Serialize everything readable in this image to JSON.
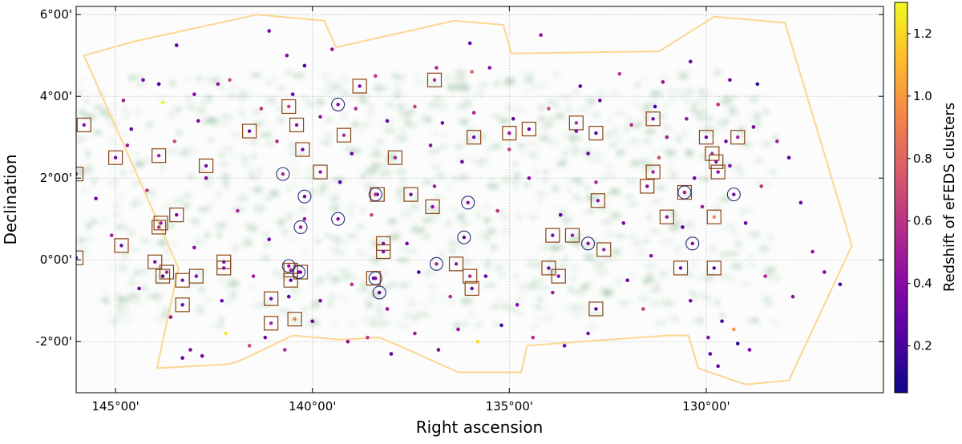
{
  "chart_data": {
    "type": "scatter",
    "title": "",
    "xlabel": "Right ascension",
    "ylabel": "Declination",
    "colorbar_label": "Redshift of eFEDS clusters",
    "x_inverted": true,
    "xlim": [
      146.0,
      125.5
    ],
    "ylim": [
      -3.25,
      6.2
    ],
    "x_ticks": [
      {
        "value": 145,
        "label": "145°00'"
      },
      {
        "value": 140,
        "label": "140°00'"
      },
      {
        "value": 135,
        "label": "135°00'"
      },
      {
        "value": 130,
        "label": "130°00'"
      }
    ],
    "y_ticks": [
      {
        "value": 6,
        "label": "6°00'"
      },
      {
        "value": 4,
        "label": "4°00'"
      },
      {
        "value": 2,
        "label": "2°00'"
      },
      {
        "value": 0,
        "label": "0°00'"
      },
      {
        "value": -2,
        "label": "-2°00'"
      }
    ],
    "colorbar_ticks": [
      {
        "value": 0.2,
        "label": "0.2"
      },
      {
        "value": 0.4,
        "label": "0.4"
      },
      {
        "value": 0.6,
        "label": "0.6"
      },
      {
        "value": 0.8,
        "label": "0.8"
      },
      {
        "value": 1.0,
        "label": "1.0"
      },
      {
        "value": 1.2,
        "label": "1.2"
      }
    ],
    "colorbar_range": [
      0.05,
      1.3
    ],
    "colormap": [
      "#0d0887",
      "#5302a3",
      "#8b0aa5",
      "#b83289",
      "#db5c68",
      "#f48849",
      "#febd2a",
      "#f0f921"
    ],
    "grid": true,
    "footprint_color": "#fdd690",
    "square_marker_color": "#8b4513",
    "circle_marker_color": "#2a2a7a",
    "footprint": [
      [
        145.8,
        5.0
      ],
      [
        144.5,
        5.35
      ],
      [
        141.4,
        6.0
      ],
      [
        139.7,
        5.85
      ],
      [
        139.4,
        5.2
      ],
      [
        136.4,
        5.85
      ],
      [
        135.15,
        5.75
      ],
      [
        134.95,
        5.05
      ],
      [
        131.2,
        5.1
      ],
      [
        129.8,
        5.95
      ],
      [
        128.0,
        5.8
      ],
      [
        126.3,
        0.35
      ],
      [
        127.9,
        -2.95
      ],
      [
        129.0,
        -3.05
      ],
      [
        130.2,
        -2.65
      ],
      [
        130.45,
        -1.85
      ],
      [
        131.0,
        -1.85
      ],
      [
        134.55,
        -2.1
      ],
      [
        134.7,
        -2.75
      ],
      [
        136.3,
        -2.75
      ],
      [
        137.8,
        -2.1
      ],
      [
        138.3,
        -1.9
      ],
      [
        139.3,
        -1.95
      ],
      [
        140.5,
        -1.85
      ],
      [
        141.8,
        -2.45
      ],
      [
        142.1,
        -2.55
      ],
      [
        143.95,
        -2.65
      ],
      [
        143.4,
        -0.2
      ],
      [
        145.8,
        5.0
      ]
    ],
    "clusters": [
      {
        "ra": 141.1,
        "dec": 5.6,
        "z": 0.35
      },
      {
        "ra": 140.65,
        "dec": 5.0,
        "z": 0.4
      },
      {
        "ra": 140.2,
        "dec": 4.75,
        "z": 0.2
      },
      {
        "ra": 139.5,
        "dec": 5.15,
        "z": 0.45
      },
      {
        "ra": 136.85,
        "dec": 4.7,
        "z": 0.55
      },
      {
        "ra": 135.95,
        "dec": 4.6,
        "z": 0.8
      },
      {
        "ra": 135.5,
        "dec": 4.7,
        "z": 0.4
      },
      {
        "ra": 133.2,
        "dec": 4.25,
        "z": 0.25
      },
      {
        "ra": 132.2,
        "dec": 4.55,
        "z": 0.6
      },
      {
        "ra": 131.1,
        "dec": 4.35,
        "z": 0.45
      },
      {
        "ra": 130.4,
        "dec": 4.85,
        "z": 0.3
      },
      {
        "ra": 129.4,
        "dec": 4.4,
        "z": 0.35
      },
      {
        "ra": 128.7,
        "dec": 4.3,
        "z": 0.15
      },
      {
        "ra": 143.45,
        "dec": 5.25,
        "z": 0.25
      },
      {
        "ra": 144.3,
        "dec": 4.4,
        "z": 0.35
      },
      {
        "ra": 144.8,
        "dec": 3.9,
        "z": 0.5
      },
      {
        "ra": 144.6,
        "dec": 3.2,
        "z": 0.3
      },
      {
        "ra": 143.8,
        "dec": 3.85,
        "z": 1.3
      },
      {
        "ra": 143.0,
        "dec": 4.05,
        "z": 0.4
      },
      {
        "ra": 142.1,
        "dec": 4.4,
        "z": 0.7
      },
      {
        "ra": 141.3,
        "dec": 3.7,
        "z": 0.6
      },
      {
        "ra": 140.5,
        "dec": 4.05,
        "z": 0.25
      },
      {
        "ra": 139.8,
        "dec": 3.5,
        "z": 0.45
      },
      {
        "ra": 138.9,
        "dec": 3.7,
        "z": 0.55
      },
      {
        "ra": 138.1,
        "dec": 3.4,
        "z": 0.3
      },
      {
        "ra": 137.4,
        "dec": 3.75,
        "z": 0.65
      },
      {
        "ra": 136.7,
        "dec": 3.35,
        "z": 0.35
      },
      {
        "ra": 135.9,
        "dec": 3.6,
        "z": 0.5
      },
      {
        "ra": 134.9,
        "dec": 3.45,
        "z": 0.25
      },
      {
        "ra": 134.0,
        "dec": 3.7,
        "z": 0.7
      },
      {
        "ra": 133.3,
        "dec": 3.15,
        "z": 0.4
      },
      {
        "ra": 132.7,
        "dec": 3.9,
        "z": 0.3
      },
      {
        "ra": 131.9,
        "dec": 3.3,
        "z": 0.55
      },
      {
        "ra": 131.3,
        "dec": 3.75,
        "z": 0.2
      },
      {
        "ra": 130.5,
        "dec": 3.45,
        "z": 0.45
      },
      {
        "ra": 129.7,
        "dec": 3.8,
        "z": 0.6
      },
      {
        "ra": 128.8,
        "dec": 3.25,
        "z": 0.35
      },
      {
        "ra": 128.2,
        "dec": 2.9,
        "z": 0.5
      },
      {
        "ra": 127.9,
        "dec": 2.5,
        "z": 0.25
      },
      {
        "ra": 127.6,
        "dec": 1.4,
        "z": 0.3
      },
      {
        "ra": 127.3,
        "dec": 0.2,
        "z": 0.45
      },
      {
        "ra": 127.0,
        "dec": -0.3,
        "z": 0.35
      },
      {
        "ra": 126.6,
        "dec": -0.6,
        "z": 0.2
      },
      {
        "ra": 127.8,
        "dec": -0.9,
        "z": 0.4
      },
      {
        "ra": 128.5,
        "dec": -0.4,
        "z": 0.55
      },
      {
        "ra": 129.0,
        "dec": 0.9,
        "z": 0.3
      },
      {
        "ra": 128.6,
        "dec": 1.8,
        "z": 0.6
      },
      {
        "ra": 129.4,
        "dec": 2.3,
        "z": 0.4
      },
      {
        "ra": 130.1,
        "dec": 1.3,
        "z": 0.5
      },
      {
        "ra": 130.6,
        "dec": 0.8,
        "z": 0.25
      },
      {
        "ra": 131.4,
        "dec": 0.1,
        "z": 0.4
      },
      {
        "ra": 132.0,
        "dec": -0.5,
        "z": 0.3
      },
      {
        "ra": 131.6,
        "dec": -1.2,
        "z": 0.65
      },
      {
        "ra": 130.4,
        "dec": -1.0,
        "z": 0.35
      },
      {
        "ra": 129.6,
        "dec": -1.5,
        "z": 0.2
      },
      {
        "ra": 129.9,
        "dec": -2.3,
        "z": 0.25
      },
      {
        "ra": 129.7,
        "dec": -2.6,
        "z": 0.3
      },
      {
        "ra": 129.2,
        "dec": -2.05,
        "z": 0.15
      },
      {
        "ra": 129.3,
        "dec": -1.7,
        "z": 1.0
      },
      {
        "ra": 129.95,
        "dec": -1.9,
        "z": 0.4
      },
      {
        "ra": 128.9,
        "dec": -2.2,
        "z": 0.35
      },
      {
        "ra": 133.0,
        "dec": -1.8,
        "z": 0.4
      },
      {
        "ra": 133.6,
        "dec": -2.1,
        "z": 0.3
      },
      {
        "ra": 134.4,
        "dec": -1.9,
        "z": 0.55
      },
      {
        "ra": 135.2,
        "dec": -1.6,
        "z": 0.2
      },
      {
        "ra": 135.8,
        "dec": -2.0,
        "z": 1.2
      },
      {
        "ra": 136.3,
        "dec": -1.7,
        "z": 0.45
      },
      {
        "ra": 136.8,
        "dec": -2.2,
        "z": 0.35
      },
      {
        "ra": 137.4,
        "dec": -1.8,
        "z": 0.5
      },
      {
        "ra": 138.0,
        "dec": -2.3,
        "z": 0.25
      },
      {
        "ra": 138.6,
        "dec": -1.9,
        "z": 0.6
      },
      {
        "ra": 139.1,
        "dec": -2.0,
        "z": 0.4
      },
      {
        "ra": 140.0,
        "dec": -1.5,
        "z": 0.3
      },
      {
        "ra": 140.7,
        "dec": -2.2,
        "z": 0.55
      },
      {
        "ra": 141.2,
        "dec": -1.9,
        "z": 0.35
      },
      {
        "ra": 141.6,
        "dec": -2.1,
        "z": 0.7
      },
      {
        "ra": 142.2,
        "dec": -1.8,
        "z": 1.25
      },
      {
        "ra": 143.1,
        "dec": -2.2,
        "z": 0.4
      },
      {
        "ra": 143.3,
        "dec": -2.4,
        "z": 0.25
      },
      {
        "ra": 142.8,
        "dec": -2.35,
        "z": 0.3
      },
      {
        "ra": 143.6,
        "dec": -1.4,
        "z": 0.45
      },
      {
        "ra": 144.4,
        "dec": -0.7,
        "z": 0.35
      },
      {
        "ra": 145.1,
        "dec": 0.6,
        "z": 0.5
      },
      {
        "ra": 145.5,
        "dec": 1.5,
        "z": 0.3
      },
      {
        "ra": 144.2,
        "dec": 1.7,
        "z": 0.6
      },
      {
        "ra": 143.5,
        "dec": 2.9,
        "z": 0.7
      },
      {
        "ra": 142.7,
        "dec": 2.0,
        "z": 0.4
      },
      {
        "ra": 141.9,
        "dec": 1.2,
        "z": 0.55
      },
      {
        "ra": 141.1,
        "dec": 0.5,
        "z": 0.3
      },
      {
        "ra": 140.2,
        "dec": 1.0,
        "z": 0.45
      },
      {
        "ra": 139.3,
        "dec": 1.9,
        "z": 0.25
      },
      {
        "ra": 138.5,
        "dec": 1.1,
        "z": 0.65
      },
      {
        "ra": 137.6,
        "dec": 0.4,
        "z": 0.35
      },
      {
        "ra": 136.9,
        "dec": 1.8,
        "z": 0.5
      },
      {
        "ra": 136.2,
        "dec": 2.4,
        "z": 0.3
      },
      {
        "ra": 135.3,
        "dec": 1.2,
        "z": 0.6
      },
      {
        "ra": 134.5,
        "dec": 2.0,
        "z": 0.4
      },
      {
        "ra": 133.7,
        "dec": 1.1,
        "z": 0.25
      },
      {
        "ra": 132.8,
        "dec": 1.9,
        "z": 0.55
      },
      {
        "ra": 132.1,
        "dec": 0.9,
        "z": 0.35
      },
      {
        "ra": 131.2,
        "dec": 2.5,
        "z": 0.7
      },
      {
        "ra": 130.3,
        "dec": 2.0,
        "z": 0.3
      },
      {
        "ra": 133.9,
        "dec": -0.8,
        "z": 0.5
      },
      {
        "ra": 134.8,
        "dec": -1.1,
        "z": 0.4
      },
      {
        "ra": 135.6,
        "dec": -0.4,
        "z": 0.3
      },
      {
        "ra": 136.5,
        "dec": -0.9,
        "z": 0.55
      },
      {
        "ra": 137.3,
        "dec": -0.3,
        "z": 0.2
      },
      {
        "ra": 138.1,
        "dec": -1.2,
        "z": 0.45
      },
      {
        "ra": 139.0,
        "dec": -0.6,
        "z": 0.6
      },
      {
        "ra": 139.8,
        "dec": -1.0,
        "z": 0.35
      },
      {
        "ra": 140.6,
        "dec": -0.9,
        "z": 0.25
      },
      {
        "ra": 141.5,
        "dec": -0.4,
        "z": 0.5
      },
      {
        "ra": 142.3,
        "dec": -1.0,
        "z": 0.3
      },
      {
        "ra": 143.0,
        "dec": 0.3,
        "z": 0.4
      },
      {
        "ra": 144.7,
        "dec": 2.8,
        "z": 0.45
      },
      {
        "ra": 142.9,
        "dec": 3.4,
        "z": 0.35
      },
      {
        "ra": 140.9,
        "dec": 2.9,
        "z": 0.55
      },
      {
        "ra": 139.0,
        "dec": 2.6,
        "z": 0.3
      },
      {
        "ra": 137.0,
        "dec": 2.8,
        "z": 0.4
      },
      {
        "ra": 135.0,
        "dec": 2.7,
        "z": 0.65
      },
      {
        "ra": 133.0,
        "dec": 2.6,
        "z": 0.3
      },
      {
        "ra": 131.0,
        "dec": 3.0,
        "z": 0.5
      },
      {
        "ra": 129.5,
        "dec": 2.9,
        "z": 0.35
      },
      {
        "ra": 136.0,
        "dec": 5.3,
        "z": 0.3
      },
      {
        "ra": 134.2,
        "dec": 5.5,
        "z": 0.45
      },
      {
        "ra": 138.4,
        "dec": 4.5,
        "z": 0.6
      },
      {
        "ra": 143.9,
        "dec": 4.3,
        "z": 0.2
      },
      {
        "ra": 142.4,
        "dec": 4.3,
        "z": 0.45
      }
    ],
    "square_markers": [
      {
        "ra": 145.8,
        "dec": 3.3,
        "z": 0.4
      },
      {
        "ra": 145.0,
        "dec": 2.5,
        "z": 0.3
      },
      {
        "ra": 143.9,
        "dec": 2.55,
        "z": 0.5
      },
      {
        "ra": 142.7,
        "dec": 2.3,
        "z": 0.35
      },
      {
        "ra": 141.6,
        "dec": 3.15,
        "z": 0.25
      },
      {
        "ra": 140.6,
        "dec": 3.75,
        "z": 0.6
      },
      {
        "ra": 140.4,
        "dec": 3.3,
        "z": 0.4
      },
      {
        "ra": 140.25,
        "dec": 2.7,
        "z": 0.3
      },
      {
        "ra": 139.8,
        "dec": 2.15,
        "z": 0.45
      },
      {
        "ra": 139.2,
        "dec": 3.05,
        "z": 0.55
      },
      {
        "ra": 138.8,
        "dec": 4.25,
        "z": 0.35
      },
      {
        "ra": 138.35,
        "dec": 1.6,
        "z": 0.25
      },
      {
        "ra": 137.9,
        "dec": 2.5,
        "z": 0.5
      },
      {
        "ra": 137.5,
        "dec": 1.6,
        "z": 0.3
      },
      {
        "ra": 136.9,
        "dec": 4.4,
        "z": 0.55
      },
      {
        "ra": 136.95,
        "dec": 1.3,
        "z": 0.4
      },
      {
        "ra": 135.9,
        "dec": 3.0,
        "z": 0.35
      },
      {
        "ra": 135.0,
        "dec": 3.1,
        "z": 0.45
      },
      {
        "ra": 134.5,
        "dec": 3.2,
        "z": 0.3
      },
      {
        "ra": 133.3,
        "dec": 3.35,
        "z": 0.55
      },
      {
        "ra": 132.8,
        "dec": 3.1,
        "z": 0.25
      },
      {
        "ra": 132.75,
        "dec": 1.45,
        "z": 0.4
      },
      {
        "ra": 131.5,
        "dec": 1.8,
        "z": 0.35
      },
      {
        "ra": 131.35,
        "dec": 2.15,
        "z": 0.5
      },
      {
        "ra": 131.35,
        "dec": 3.45,
        "z": 0.3
      },
      {
        "ra": 131.0,
        "dec": 1.05,
        "z": 0.45
      },
      {
        "ra": 130.55,
        "dec": 1.65,
        "z": 0.4
      },
      {
        "ra": 130.0,
        "dec": 3.0,
        "z": 0.3
      },
      {
        "ra": 129.85,
        "dec": 2.6,
        "z": 0.55
      },
      {
        "ra": 129.75,
        "dec": 2.4,
        "z": 0.35
      },
      {
        "ra": 129.7,
        "dec": 2.15,
        "z": 0.4
      },
      {
        "ra": 129.8,
        "dec": 1.05,
        "z": 0.95
      },
      {
        "ra": 129.2,
        "dec": 3.0,
        "z": 0.5
      },
      {
        "ra": 130.65,
        "dec": -0.2,
        "z": 0.3
      },
      {
        "ra": 129.8,
        "dec": -0.2,
        "z": 0.25
      },
      {
        "ra": 133.4,
        "dec": 0.6,
        "z": 0.45
      },
      {
        "ra": 133.9,
        "dec": 0.6,
        "z": 0.35
      },
      {
        "ra": 132.6,
        "dec": 0.25,
        "z": 0.5
      },
      {
        "ra": 134.0,
        "dec": -0.2,
        "z": 0.3
      },
      {
        "ra": 133.75,
        "dec": -0.4,
        "z": 0.4
      },
      {
        "ra": 132.8,
        "dec": -1.2,
        "z": 0.25
      },
      {
        "ra": 136.0,
        "dec": -0.4,
        "z": 0.55
      },
      {
        "ra": 135.95,
        "dec": -0.7,
        "z": 0.3
      },
      {
        "ra": 136.35,
        "dec": -0.1,
        "z": 0.45
      },
      {
        "ra": 138.2,
        "dec": 0.4,
        "z": 0.35
      },
      {
        "ra": 138.2,
        "dec": 0.2,
        "z": 0.4
      },
      {
        "ra": 138.45,
        "dec": -0.45,
        "z": 0.3
      },
      {
        "ra": 140.55,
        "dec": -0.25,
        "z": 0.55
      },
      {
        "ra": 140.3,
        "dec": -0.3,
        "z": 0.4
      },
      {
        "ra": 140.55,
        "dec": -0.5,
        "z": 0.25
      },
      {
        "ra": 141.05,
        "dec": -0.95,
        "z": 0.35
      },
      {
        "ra": 141.05,
        "dec": -1.55,
        "z": 0.5
      },
      {
        "ra": 140.45,
        "dec": -1.45,
        "z": 0.9
      },
      {
        "ra": 142.25,
        "dec": -0.05,
        "z": 0.3
      },
      {
        "ra": 142.25,
        "dec": -0.2,
        "z": 0.4
      },
      {
        "ra": 143.45,
        "dec": 1.1,
        "z": 0.35
      },
      {
        "ra": 143.85,
        "dec": 0.9,
        "z": 0.45
      },
      {
        "ra": 143.9,
        "dec": 0.8,
        "z": 0.55
      },
      {
        "ra": 144.85,
        "dec": 0.35,
        "z": 0.3
      },
      {
        "ra": 144.0,
        "dec": -0.05,
        "z": 0.4
      },
      {
        "ra": 143.8,
        "dec": -0.4,
        "z": 0.25
      },
      {
        "ra": 143.7,
        "dec": -0.3,
        "z": 0.5
      },
      {
        "ra": 143.3,
        "dec": -0.5,
        "z": 0.35
      },
      {
        "ra": 143.3,
        "dec": -1.1,
        "z": 0.3
      },
      {
        "ra": 142.95,
        "dec": -0.4,
        "z": 0.4
      },
      {
        "ra": 146.0,
        "dec": 0.05,
        "z": 0.35
      },
      {
        "ra": 146.0,
        "dec": 2.1,
        "z": 0.45
      }
    ],
    "circle_markers": [
      {
        "ra": 139.35,
        "dec": 3.8,
        "z": 0.35
      },
      {
        "ra": 140.75,
        "dec": 2.1,
        "z": 0.5
      },
      {
        "ra": 140.2,
        "dec": 1.55,
        "z": 0.3
      },
      {
        "ra": 140.3,
        "dec": 0.8,
        "z": 0.45
      },
      {
        "ra": 139.35,
        "dec": 1.0,
        "z": 0.35
      },
      {
        "ra": 138.4,
        "dec": 1.6,
        "z": 0.55
      },
      {
        "ra": 136.05,
        "dec": 1.4,
        "z": 0.4
      },
      {
        "ra": 136.15,
        "dec": 0.55,
        "z": 0.3
      },
      {
        "ra": 136.85,
        "dec": -0.1,
        "z": 0.5
      },
      {
        "ra": 138.4,
        "dec": -0.45,
        "z": 0.35
      },
      {
        "ra": 138.3,
        "dec": -0.8,
        "z": 0.25
      },
      {
        "ra": 140.6,
        "dec": -0.15,
        "z": 0.45
      },
      {
        "ra": 140.35,
        "dec": -0.3,
        "z": 0.3
      },
      {
        "ra": 133.0,
        "dec": 0.4,
        "z": 0.4
      },
      {
        "ra": 130.35,
        "dec": 0.4,
        "z": 0.35
      },
      {
        "ra": 130.55,
        "dec": 1.65,
        "z": 0.5
      },
      {
        "ra": 129.3,
        "dec": 1.6,
        "z": 0.3
      }
    ]
  }
}
